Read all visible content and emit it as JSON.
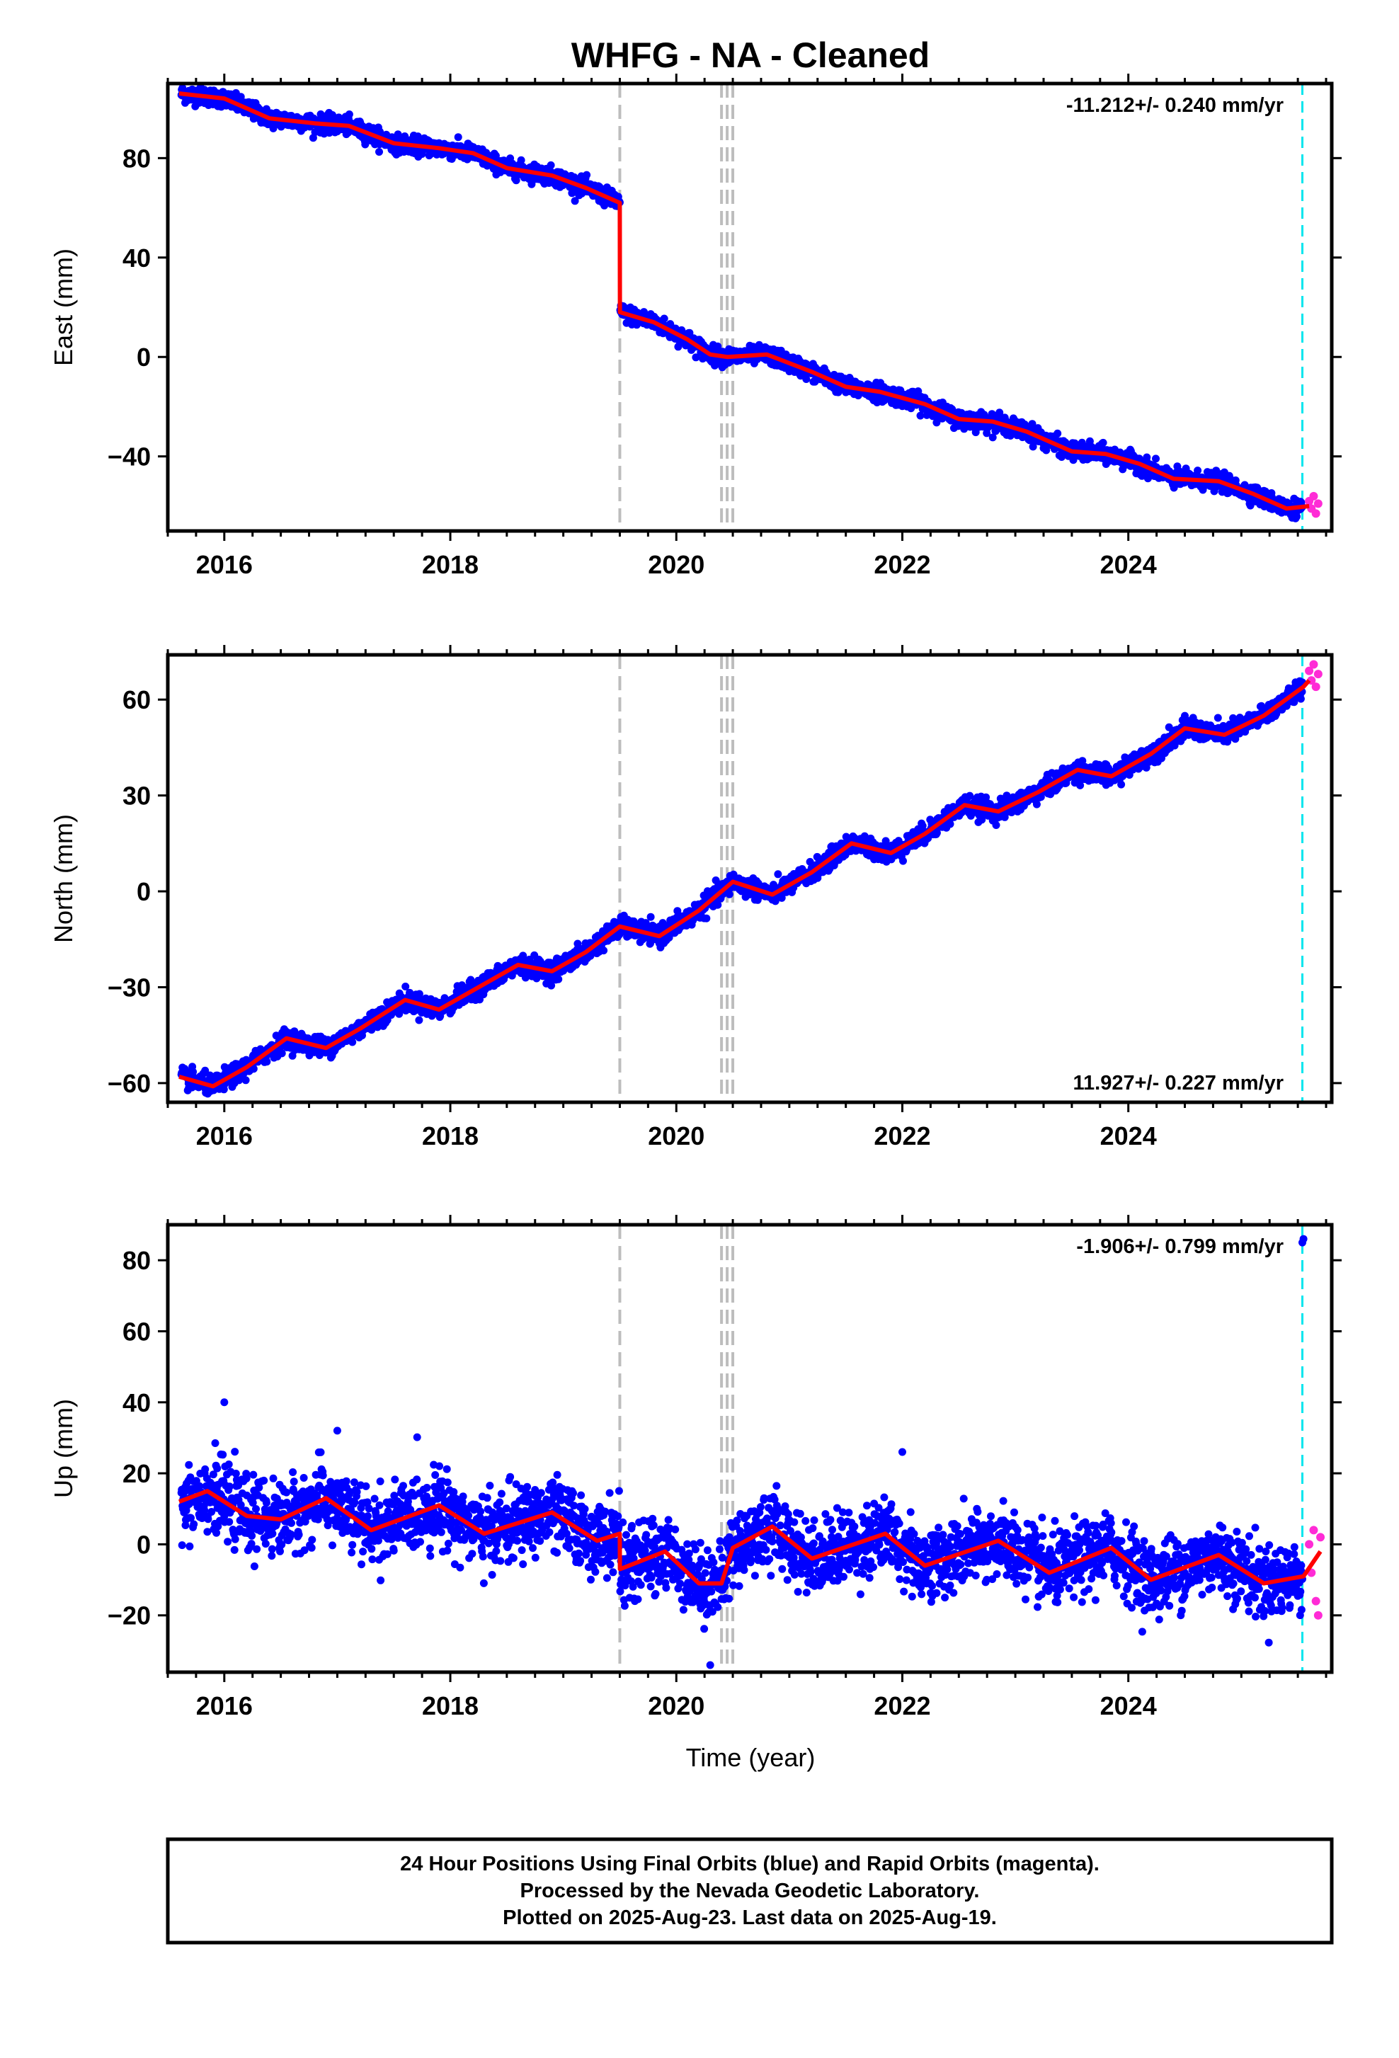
{
  "title": "WHFG  - NA - Cleaned",
  "xlabel": "Time (year)",
  "footer": {
    "line1": "24 Hour Positions Using Final Orbits (blue) and Rapid Orbits (magenta).",
    "line2": "Processed by the Nevada Geodetic Laboratory.",
    "line3": "Plotted on 2025-Aug-23. Last data on 2025-Aug-19."
  },
  "colors": {
    "final_orbits": "#0000ff",
    "rapid_orbits": "#ff2bd6",
    "model_fit": "#ff0000",
    "offset_lines": "#bdbdbd",
    "last_data_line": "#00e5ee",
    "frame": "#000000"
  },
  "chart_data": [
    {
      "type": "scatter",
      "ylabel": "East (mm)",
      "xlim": [
        2015.5,
        2025.8
      ],
      "ylim": [
        -70,
        110
      ],
      "xticks": [
        2016,
        2018,
        2020,
        2022,
        2024
      ],
      "xtick_labels": [
        "2016",
        "2018",
        "2020",
        "2022",
        "2024"
      ],
      "yticks": [
        -40,
        0,
        40,
        80
      ],
      "ytick_labels": [
        "−40",
        "0",
        "40",
        "80"
      ],
      "rate_text": "-11.212+/- 0.240 mm/yr",
      "rate_position": "top-right",
      "model_fit": [
        [
          2015.6,
          106
        ],
        [
          2016.0,
          104
        ],
        [
          2016.4,
          96
        ],
        [
          2016.8,
          94
        ],
        [
          2017.1,
          93
        ],
        [
          2017.5,
          86
        ],
        [
          2017.9,
          84
        ],
        [
          2018.2,
          82
        ],
        [
          2018.5,
          76
        ],
        [
          2018.9,
          73
        ],
        [
          2019.2,
          68
        ],
        [
          2019.5,
          62
        ],
        [
          2019.501,
          18
        ],
        [
          2019.8,
          14
        ],
        [
          2020.1,
          7
        ],
        [
          2020.3,
          1
        ],
        [
          2020.45,
          0
        ],
        [
          2020.8,
          1
        ],
        [
          2021.2,
          -6
        ],
        [
          2021.5,
          -12
        ],
        [
          2021.8,
          -14
        ],
        [
          2022.2,
          -19
        ],
        [
          2022.5,
          -25
        ],
        [
          2022.8,
          -26
        ],
        [
          2023.1,
          -30
        ],
        [
          2023.5,
          -38
        ],
        [
          2023.8,
          -39
        ],
        [
          2024.1,
          -43
        ],
        [
          2024.4,
          -49
        ],
        [
          2024.8,
          -50
        ],
        [
          2025.1,
          -55
        ],
        [
          2025.4,
          -61
        ],
        [
          2025.6,
          -60
        ]
      ],
      "final_scatter": 1.7,
      "rapid_points": [
        [
          2025.6,
          -58
        ],
        [
          2025.62,
          -61
        ],
        [
          2025.64,
          -56
        ],
        [
          2025.66,
          -63
        ],
        [
          2025.68,
          -59
        ]
      ],
      "offsets": [
        2019.5,
        2020.4,
        2020.45,
        2020.5
      ],
      "last_data": 2025.54
    },
    {
      "type": "scatter",
      "ylabel": "North (mm)",
      "xlim": [
        2015.5,
        2025.8
      ],
      "ylim": [
        -66,
        74
      ],
      "xticks": [
        2016,
        2018,
        2020,
        2022,
        2024
      ],
      "xtick_labels": [
        "2016",
        "2018",
        "2020",
        "2022",
        "2024"
      ],
      "yticks": [
        -60,
        -30,
        0,
        30,
        60
      ],
      "ytick_labels": [
        "−60",
        "−30",
        "0",
        "30",
        "60"
      ],
      "rate_text": "11.927+/- 0.227 mm/yr",
      "rate_position": "bottom-right",
      "model_fit": [
        [
          2015.6,
          -58
        ],
        [
          2015.9,
          -61
        ],
        [
          2016.2,
          -55
        ],
        [
          2016.55,
          -46
        ],
        [
          2016.9,
          -49
        ],
        [
          2017.2,
          -43
        ],
        [
          2017.6,
          -34
        ],
        [
          2017.9,
          -37
        ],
        [
          2018.2,
          -31
        ],
        [
          2018.6,
          -23
        ],
        [
          2018.9,
          -25
        ],
        [
          2019.2,
          -19
        ],
        [
          2019.5,
          -11
        ],
        [
          2019.85,
          -14
        ],
        [
          2020.2,
          -6
        ],
        [
          2020.5,
          3
        ],
        [
          2020.85,
          -1
        ],
        [
          2021.2,
          6
        ],
        [
          2021.55,
          15
        ],
        [
          2021.9,
          12
        ],
        [
          2022.2,
          18
        ],
        [
          2022.55,
          27
        ],
        [
          2022.85,
          25
        ],
        [
          2023.2,
          31
        ],
        [
          2023.55,
          38
        ],
        [
          2023.85,
          36
        ],
        [
          2024.2,
          43
        ],
        [
          2024.5,
          51
        ],
        [
          2024.85,
          49
        ],
        [
          2025.2,
          55
        ],
        [
          2025.55,
          64
        ],
        [
          2025.6,
          66
        ]
      ],
      "final_scatter": 1.5,
      "rapid_points": [
        [
          2025.6,
          69
        ],
        [
          2025.62,
          66
        ],
        [
          2025.64,
          71
        ],
        [
          2025.66,
          64
        ],
        [
          2025.68,
          68
        ]
      ],
      "offsets": [
        2019.5,
        2020.4,
        2020.45,
        2020.5
      ],
      "last_data": 2025.54
    },
    {
      "type": "scatter",
      "ylabel": "Up (mm)",
      "xlim": [
        2015.5,
        2025.8
      ],
      "ylim": [
        -36,
        90
      ],
      "xticks": [
        2016,
        2018,
        2020,
        2022,
        2024
      ],
      "xtick_labels": [
        "2016",
        "2018",
        "2020",
        "2022",
        "2024"
      ],
      "yticks": [
        -20,
        0,
        20,
        40,
        60,
        80
      ],
      "ytick_labels": [
        "−20",
        "0",
        "20",
        "40",
        "60",
        "80"
      ],
      "rate_text": "-1.906+/- 0.799 mm/yr",
      "rate_position": "top-right",
      "model_fit": [
        [
          2015.6,
          12
        ],
        [
          2015.85,
          15
        ],
        [
          2016.2,
          8
        ],
        [
          2016.5,
          7
        ],
        [
          2016.9,
          13
        ],
        [
          2017.3,
          4
        ],
        [
          2017.9,
          11
        ],
        [
          2018.3,
          3
        ],
        [
          2018.9,
          9
        ],
        [
          2019.3,
          1
        ],
        [
          2019.5,
          3
        ],
        [
          2019.501,
          -7
        ],
        [
          2019.9,
          -2
        ],
        [
          2020.2,
          -11
        ],
        [
          2020.4,
          -11
        ],
        [
          2020.5,
          -1
        ],
        [
          2020.85,
          5
        ],
        [
          2021.2,
          -4
        ],
        [
          2021.85,
          3
        ],
        [
          2022.2,
          -6
        ],
        [
          2022.85,
          1
        ],
        [
          2023.3,
          -8
        ],
        [
          2023.85,
          -1
        ],
        [
          2024.2,
          -10
        ],
        [
          2024.8,
          -3
        ],
        [
          2025.2,
          -11
        ],
        [
          2025.55,
          -9
        ],
        [
          2025.7,
          -2
        ]
      ],
      "final_scatter": 5.0,
      "outliers": [
        [
          2020.3,
          -34
        ],
        [
          2025.54,
          85
        ],
        [
          2025.55,
          86
        ],
        [
          2016.0,
          40
        ],
        [
          2017.0,
          32
        ],
        [
          2022.0,
          26
        ]
      ],
      "rapid_points": [
        [
          2025.6,
          0
        ],
        [
          2025.62,
          -8
        ],
        [
          2025.64,
          4
        ],
        [
          2025.66,
          -16
        ],
        [
          2025.68,
          -20
        ],
        [
          2025.7,
          2
        ]
      ],
      "offsets": [
        2019.5,
        2020.4,
        2020.45,
        2020.5
      ],
      "last_data": 2025.54
    }
  ]
}
